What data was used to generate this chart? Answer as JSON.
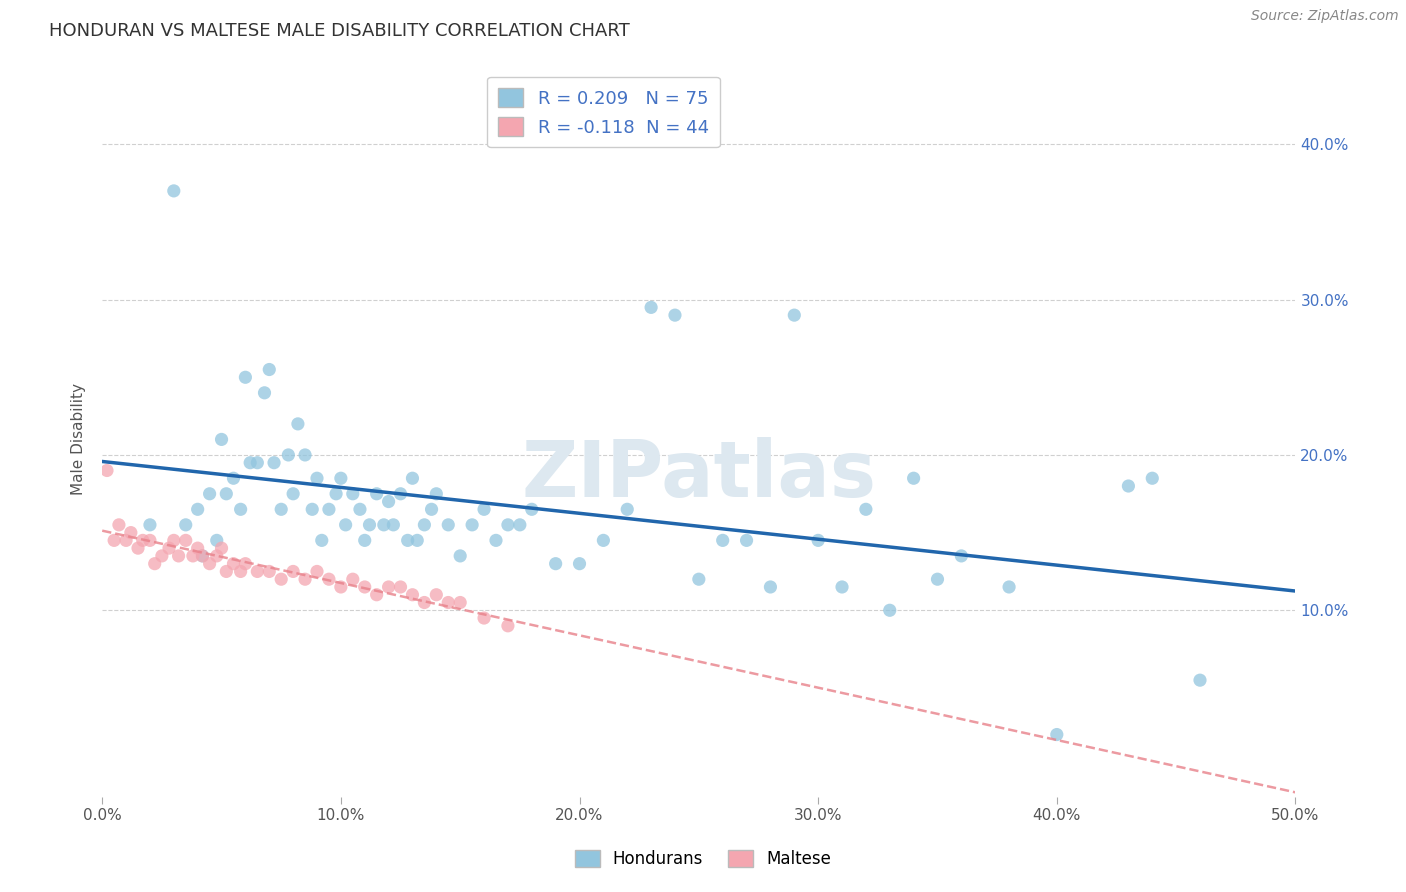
{
  "title": "HONDURAN VS MALTESE MALE DISABILITY CORRELATION CHART",
  "source": "Source: ZipAtlas.com",
  "ylabel": "Male Disability",
  "xlim": [
    0.0,
    0.5
  ],
  "ylim": [
    -0.02,
    0.44
  ],
  "xticks": [
    0.0,
    0.1,
    0.2,
    0.3,
    0.4,
    0.5
  ],
  "xtick_labels": [
    "0.0%",
    "10.0%",
    "20.0%",
    "30.0%",
    "40.0%",
    "50.0%"
  ],
  "ytick_positions": [
    0.1,
    0.2,
    0.3,
    0.4
  ],
  "ytick_labels": [
    "10.0%",
    "20.0%",
    "30.0%",
    "40.0%"
  ],
  "honduran_R": 0.209,
  "honduran_N": 75,
  "maltese_R": -0.118,
  "maltese_N": 44,
  "honduran_color": "#92c5de",
  "maltese_color": "#f4a6b0",
  "honduran_line_color": "#2166ac",
  "maltese_line_color": "#e8818a",
  "background_color": "#ffffff",
  "grid_color": "#d0d0d0",
  "honduran_x": [
    0.02,
    0.03,
    0.035,
    0.04,
    0.042,
    0.045,
    0.048,
    0.05,
    0.052,
    0.055,
    0.058,
    0.06,
    0.062,
    0.065,
    0.068,
    0.07,
    0.072,
    0.075,
    0.078,
    0.08,
    0.082,
    0.085,
    0.088,
    0.09,
    0.092,
    0.095,
    0.098,
    0.1,
    0.102,
    0.105,
    0.108,
    0.11,
    0.112,
    0.115,
    0.118,
    0.12,
    0.122,
    0.125,
    0.128,
    0.13,
    0.132,
    0.135,
    0.138,
    0.14,
    0.145,
    0.15,
    0.155,
    0.16,
    0.165,
    0.17,
    0.175,
    0.18,
    0.19,
    0.2,
    0.21,
    0.22,
    0.23,
    0.24,
    0.25,
    0.26,
    0.27,
    0.28,
    0.29,
    0.3,
    0.31,
    0.32,
    0.33,
    0.34,
    0.35,
    0.36,
    0.38,
    0.4,
    0.43,
    0.44,
    0.46
  ],
  "honduran_y": [
    0.155,
    0.37,
    0.155,
    0.165,
    0.135,
    0.175,
    0.145,
    0.21,
    0.175,
    0.185,
    0.165,
    0.25,
    0.195,
    0.195,
    0.24,
    0.255,
    0.195,
    0.165,
    0.2,
    0.175,
    0.22,
    0.2,
    0.165,
    0.185,
    0.145,
    0.165,
    0.175,
    0.185,
    0.155,
    0.175,
    0.165,
    0.145,
    0.155,
    0.175,
    0.155,
    0.17,
    0.155,
    0.175,
    0.145,
    0.185,
    0.145,
    0.155,
    0.165,
    0.175,
    0.155,
    0.135,
    0.155,
    0.165,
    0.145,
    0.155,
    0.155,
    0.165,
    0.13,
    0.13,
    0.145,
    0.165,
    0.295,
    0.29,
    0.12,
    0.145,
    0.145,
    0.115,
    0.29,
    0.145,
    0.115,
    0.165,
    0.1,
    0.185,
    0.12,
    0.135,
    0.115,
    0.02,
    0.18,
    0.185,
    0.055
  ],
  "maltese_x": [
    0.002,
    0.005,
    0.007,
    0.01,
    0.012,
    0.015,
    0.017,
    0.02,
    0.022,
    0.025,
    0.028,
    0.03,
    0.032,
    0.035,
    0.038,
    0.04,
    0.042,
    0.045,
    0.048,
    0.05,
    0.052,
    0.055,
    0.058,
    0.06,
    0.065,
    0.07,
    0.075,
    0.08,
    0.085,
    0.09,
    0.095,
    0.1,
    0.105,
    0.11,
    0.115,
    0.12,
    0.125,
    0.13,
    0.135,
    0.14,
    0.145,
    0.15,
    0.16,
    0.17
  ],
  "maltese_y": [
    0.19,
    0.145,
    0.155,
    0.145,
    0.15,
    0.14,
    0.145,
    0.145,
    0.13,
    0.135,
    0.14,
    0.145,
    0.135,
    0.145,
    0.135,
    0.14,
    0.135,
    0.13,
    0.135,
    0.14,
    0.125,
    0.13,
    0.125,
    0.13,
    0.125,
    0.125,
    0.12,
    0.125,
    0.12,
    0.125,
    0.12,
    0.115,
    0.12,
    0.115,
    0.11,
    0.115,
    0.115,
    0.11,
    0.105,
    0.11,
    0.105,
    0.105,
    0.095,
    0.09
  ]
}
